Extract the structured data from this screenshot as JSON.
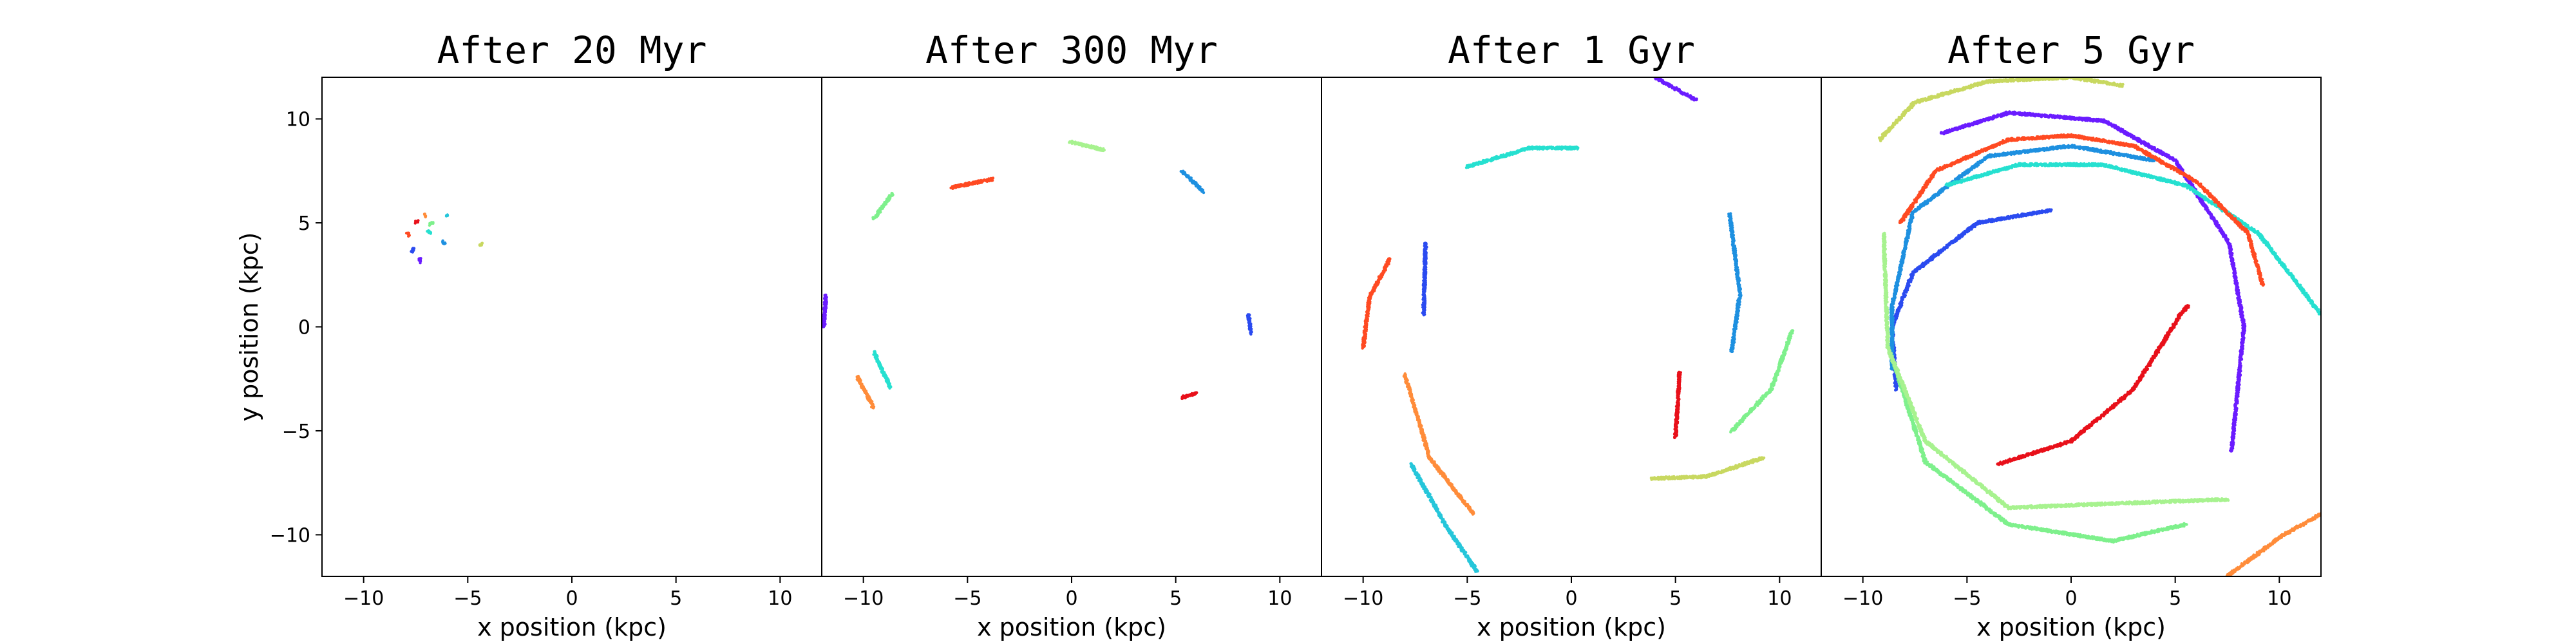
{
  "chart_data": [
    {
      "type": "scatter",
      "title": "After 20 Myr",
      "xlabel": "x position (kpc)",
      "ylabel": "y position (kpc)",
      "xlim": [
        -12,
        12
      ],
      "ylim": [
        -12,
        12
      ],
      "xticks": [
        -10,
        -5,
        0,
        5,
        10
      ],
      "yticks": [
        -10,
        -5,
        0,
        5,
        10
      ],
      "series": [
        {
          "color": "#6b1cff",
          "arcs": [
            [
              -7.3,
              3.1,
              -7.3,
              3.3
            ]
          ]
        },
        {
          "color": "#2b4bf0",
          "arcs": [
            [
              -7.7,
              3.6,
              -7.6,
              3.8
            ]
          ]
        },
        {
          "color": "#1e90e0",
          "arcs": [
            [
              -6.2,
              4.1,
              -6.1,
              4.0
            ]
          ]
        },
        {
          "color": "#26e0d0",
          "arcs": [
            [
              -6.9,
              4.6,
              -6.8,
              4.5
            ]
          ]
        },
        {
          "color": "#7ef08c",
          "arcs": [
            [
              -6.7,
              5.0,
              -6.8,
              4.9
            ]
          ]
        },
        {
          "color": "#c8d860",
          "arcs": [
            [
              -4.4,
              3.9,
              -4.3,
              4.0
            ]
          ]
        },
        {
          "color": "#ff8c3a",
          "arcs": [
            [
              -7.1,
              5.4,
              -7.0,
              5.3
            ]
          ]
        },
        {
          "color": "#ff4a22",
          "arcs": [
            [
              -7.9,
              4.5,
              -7.8,
              4.4
            ]
          ]
        },
        {
          "color": "#e8101a",
          "arcs": [
            [
              -7.4,
              5.1,
              -7.5,
              5.0
            ]
          ]
        },
        {
          "color": "#26c6da",
          "arcs": [
            [
              -6.0,
              5.3,
              -6.0,
              5.4
            ]
          ]
        }
      ]
    },
    {
      "type": "scatter",
      "title": "After 300 Myr",
      "xlabel": "x position (kpc)",
      "ylabel": "",
      "xlim": [
        -12,
        12
      ],
      "ylim": [
        -12,
        12
      ],
      "xticks": [
        -10,
        -5,
        0,
        5,
        10
      ],
      "yticks": [],
      "series": [
        {
          "color": "#6b1cff",
          "arcs": [
            [
              -11.9,
              0.0,
              -11.8,
              1.5
            ]
          ]
        },
        {
          "color": "#2b4bf0",
          "arcs": [
            [
              8.5,
              0.6,
              8.6,
              -0.3
            ]
          ]
        },
        {
          "color": "#1e90e0",
          "arcs": [
            [
              5.3,
              7.5,
              6.3,
              6.5
            ]
          ]
        },
        {
          "color": "#26e0d0",
          "arcs": [
            [
              -9.5,
              -1.2,
              -8.7,
              -2.9
            ]
          ]
        },
        {
          "color": "#7ef08c",
          "arcs": [
            [
              -9.5,
              5.2,
              -8.6,
              6.4
            ]
          ]
        },
        {
          "color": "#a7f28f",
          "arcs": [
            [
              -0.1,
              8.9,
              1.6,
              8.5
            ]
          ]
        },
        {
          "color": "#ff8c3a",
          "arcs": [
            [
              -10.3,
              -2.4,
              -9.5,
              -3.9
            ]
          ]
        },
        {
          "color": "#ff4a22",
          "arcs": [
            [
              -5.8,
              6.7,
              -3.8,
              7.1
            ]
          ]
        },
        {
          "color": "#e8101a",
          "arcs": [
            [
              5.3,
              -3.4,
              6.0,
              -3.2
            ]
          ]
        }
      ]
    },
    {
      "type": "scatter",
      "title": "After 1 Gyr",
      "xlabel": "x position (kpc)",
      "ylabel": "",
      "xlim": [
        -12,
        12
      ],
      "ylim": [
        -12,
        12
      ],
      "xticks": [
        -10,
        -5,
        0,
        5,
        10
      ],
      "yticks": [],
      "series": [
        {
          "color": "#6b1cff",
          "arcs": [
            [
              4.0,
              12.0,
              6.0,
              10.9
            ]
          ]
        },
        {
          "color": "#2b4bf0",
          "arcs": [
            [
              -7.0,
              4.0,
              -7.1,
              0.6
            ]
          ]
        },
        {
          "color": "#1e90e0",
          "arcs": [
            [
              7.6,
              5.4,
              8.1,
              1.6,
              7.7,
              -1.2
            ]
          ]
        },
        {
          "color": "#26e0d0",
          "arcs": [
            [
              -5.0,
              7.7,
              -2.0,
              8.6,
              0.3,
              8.6
            ]
          ]
        },
        {
          "color": "#26c6da",
          "arcs": [
            [
              -7.7,
              -6.6,
              -6.0,
              -9.6,
              -4.5,
              -11.8
            ]
          ]
        },
        {
          "color": "#7ef08c",
          "arcs": [
            [
              10.6,
              -0.2,
              9.6,
              -3.0,
              7.7,
              -5.0
            ]
          ]
        },
        {
          "color": "#c8d860",
          "arcs": [
            [
              3.8,
              -7.3,
              6.5,
              -7.2,
              9.2,
              -6.3
            ]
          ]
        },
        {
          "color": "#ff8c3a",
          "arcs": [
            [
              -8.0,
              -2.3,
              -6.8,
              -6.3,
              -4.7,
              -9.0
            ]
          ]
        },
        {
          "color": "#ff4a22",
          "arcs": [
            [
              -8.7,
              3.3,
              -9.7,
              1.4,
              -10.0,
              -1.0
            ]
          ]
        },
        {
          "color": "#e8101a",
          "arcs": [
            [
              5.2,
              -2.2,
              5.0,
              -5.3
            ]
          ]
        }
      ]
    },
    {
      "type": "scatter",
      "title": "After 5 Gyr",
      "xlabel": "x position (kpc)",
      "ylabel": "",
      "xlim": [
        -12,
        12
      ],
      "ylim": [
        -12,
        12
      ],
      "xticks": [
        -10,
        -5,
        0,
        5,
        10
      ],
      "yticks": [],
      "series": [
        {
          "color": "#6b1cff",
          "arcs": [
            [
              -6.2,
              9.3,
              -3.0,
              10.3,
              1.6,
              9.9,
              5.0,
              8.0,
              7.6,
              4.0,
              8.3,
              0.0,
              7.9,
              -4.0,
              7.7,
              -6.0
            ]
          ]
        },
        {
          "color": "#2b4bf0",
          "arcs": [
            [
              -1.0,
              5.6,
              -4.5,
              5.0,
              -7.6,
              2.6,
              -8.6,
              0.0,
              -8.4,
              -3.0
            ]
          ]
        },
        {
          "color": "#1e90e0",
          "arcs": [
            [
              4.0,
              8.0,
              0.0,
              8.7,
              -4.0,
              8.2,
              -7.6,
              5.5,
              -8.6,
              1.0,
              -8.6,
              -2.0
            ]
          ]
        },
        {
          "color": "#26e0d0",
          "arcs": [
            [
              -6.0,
              6.8,
              -2.5,
              7.8,
              1.5,
              7.8,
              5.5,
              6.8,
              9.0,
              4.5,
              12.0,
              0.6
            ]
          ]
        },
        {
          "color": "#7ef08c",
          "arcs": [
            [
              -8.6,
              -1.5,
              -7.0,
              -6.5,
              -3.0,
              -9.5,
              2.0,
              -10.3,
              5.5,
              -9.5
            ]
          ]
        },
        {
          "color": "#a7f28f",
          "arcs": [
            [
              -9.0,
              4.5,
              -8.8,
              -1.0,
              -7.0,
              -5.5,
              -3.0,
              -8.7,
              2.0,
              -8.5,
              7.5,
              -8.3
            ]
          ]
        },
        {
          "color": "#c8d860",
          "arcs": [
            [
              -9.2,
              9.0,
              -7.5,
              10.8,
              -4.0,
              11.8,
              0.0,
              12.0,
              2.5,
              11.6
            ]
          ]
        },
        {
          "color": "#ff8c3a",
          "arcs": [
            [
              7.5,
              -12.0,
              10.2,
              -10.0,
              12.0,
              -9.0
            ]
          ]
        },
        {
          "color": "#ff4a22",
          "arcs": [
            [
              -8.2,
              5.0,
              -6.5,
              7.5,
              -3.0,
              9.0,
              0.0,
              9.2,
              3.0,
              8.7,
              6.0,
              7.0,
              8.5,
              4.5,
              9.2,
              2.0
            ]
          ]
        },
        {
          "color": "#e8101a",
          "arcs": [
            [
              -3.5,
              -6.6,
              0.0,
              -5.5,
              3.0,
              -3.0,
              5.2,
              0.5,
              5.6,
              1.0
            ]
          ]
        }
      ]
    }
  ]
}
